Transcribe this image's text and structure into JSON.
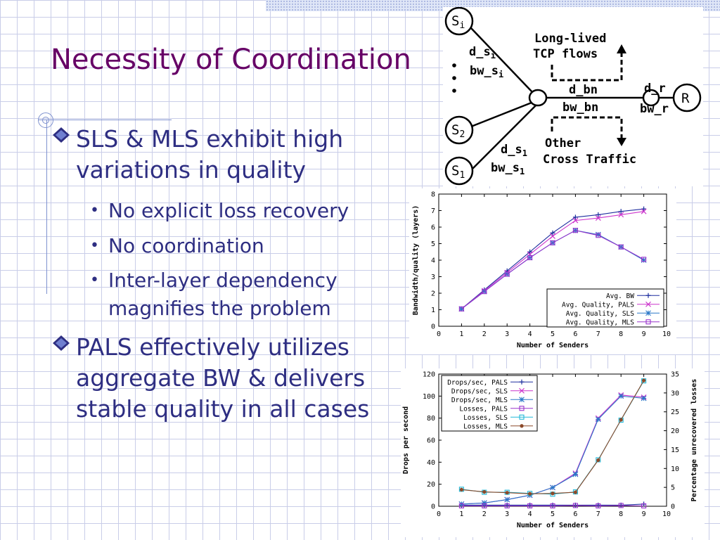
{
  "slide": {
    "title": "Necessity of Coordination",
    "bullets": [
      {
        "text": "SLS & MLS exhibit high variations in quality",
        "sub": [
          "No explicit loss recovery",
          "No coordination",
          "Inter-layer dependency magnifies the problem"
        ]
      },
      {
        "text": "PALS effectively utilizes aggregate BW & delivers stable quality in all cases",
        "sub": []
      }
    ]
  },
  "diagram": {
    "nodes": {
      "si": "S",
      "si_sub": "i",
      "s2": "S",
      "s2_sub": "2",
      "s1": "S",
      "s1_sub": "1",
      "r": "R"
    },
    "labels": {
      "dsi": "d_s",
      "dsi_sub": "i",
      "bwsi": "bw_s",
      "bwsi_sub": "i",
      "ds1": "d_s",
      "ds1_sub": "1",
      "bws1": "bw_s",
      "bws1_sub": "1",
      "dbn": "d_bn",
      "bwbn": "bw_bn",
      "dr": "d_r",
      "bwr": "bw_r",
      "tcp1": "Long-lived",
      "tcp2": "TCP flows",
      "cross1": "Other",
      "cross2": "Cross Traffic"
    }
  },
  "chart_data": [
    {
      "type": "line",
      "xlabel": "Number of Senders",
      "ylabel": "Bandwidth/quality (layers)",
      "xlim": [
        0,
        10
      ],
      "ylim": [
        0,
        8
      ],
      "xticks": [
        "0",
        "1",
        "2",
        "3",
        "4",
        "5",
        "6",
        "7",
        "8",
        "9",
        "10"
      ],
      "yticks": [
        "0",
        "1",
        "2",
        "3",
        "4",
        "5",
        "6",
        "7",
        "8"
      ],
      "legend_position": "bottom-right",
      "series": [
        {
          "name": "Avg. BW",
          "color": "#1f2f9f",
          "marker": "plus",
          "x": [
            1,
            2,
            3,
            4,
            5,
            6,
            7,
            8,
            9
          ],
          "y": [
            1.05,
            2.2,
            3.35,
            4.5,
            5.65,
            6.6,
            6.75,
            6.95,
            7.1
          ]
        },
        {
          "name": "Avg. Quality, PALS",
          "color": "#cc33cc",
          "marker": "x",
          "x": [
            1,
            2,
            3,
            4,
            5,
            6,
            7,
            8,
            9
          ],
          "y": [
            1.05,
            2.15,
            3.25,
            4.35,
            5.45,
            6.4,
            6.55,
            6.75,
            6.95
          ]
        },
        {
          "name": "Avg. Quality, SLS",
          "color": "#2a78c8",
          "marker": "star",
          "x": [
            1,
            2,
            3,
            4,
            5,
            6,
            7,
            8,
            9
          ],
          "y": [
            1.05,
            2.1,
            3.15,
            4.15,
            5.05,
            5.8,
            5.55,
            4.8,
            4.0
          ]
        },
        {
          "name": "Avg. Quality, MLS",
          "color": "#9933cc",
          "marker": "square",
          "x": [
            1,
            2,
            3,
            4,
            5,
            6,
            7,
            8,
            9
          ],
          "y": [
            1.05,
            2.1,
            3.15,
            4.15,
            5.05,
            5.8,
            5.5,
            4.8,
            4.05
          ]
        }
      ]
    },
    {
      "type": "line",
      "xlabel": "Number of Senders",
      "ylabel": "Drops per second",
      "y2label": "Percentage unrecovered losses",
      "xlim": [
        0,
        10
      ],
      "ylim": [
        0,
        120
      ],
      "y2lim": [
        0,
        35
      ],
      "xticks": [
        "0",
        "1",
        "2",
        "3",
        "4",
        "5",
        "6",
        "7",
        "8",
        "9",
        "10"
      ],
      "yticks": [
        "0",
        "20",
        "40",
        "60",
        "80",
        "100",
        "120"
      ],
      "y2ticks": [
        "0",
        "5",
        "10",
        "15",
        "20",
        "25",
        "30",
        "35"
      ],
      "legend_position": "top-left",
      "series": [
        {
          "name": "Drops/sec, PALS",
          "axis": "left",
          "color": "#1f2f9f",
          "marker": "plus",
          "x": [
            1,
            2,
            3,
            4,
            5,
            6,
            7,
            8,
            9
          ],
          "y": [
            1,
            1,
            1,
            1,
            1,
            1,
            1,
            1,
            2
          ]
        },
        {
          "name": "Drops/sec, SLS",
          "axis": "left",
          "color": "#cc33cc",
          "marker": "x",
          "x": [
            1,
            2,
            3,
            4,
            5,
            6,
            7,
            8,
            9
          ],
          "y": [
            2,
            3,
            6,
            10,
            17,
            30,
            80,
            101,
            99
          ]
        },
        {
          "name": "Drops/sec, MLS",
          "axis": "left",
          "color": "#2a78c8",
          "marker": "star",
          "x": [
            1,
            2,
            3,
            4,
            5,
            6,
            7,
            8,
            9
          ],
          "y": [
            2,
            3,
            6,
            10,
            17,
            29,
            79,
            100,
            98
          ]
        },
        {
          "name": "Losses, PALS",
          "axis": "right",
          "color": "#9933cc",
          "marker": "square",
          "x": [
            1,
            2,
            3,
            4,
            5,
            6,
            7,
            8,
            9
          ],
          "y": [
            0.1,
            0.1,
            0.1,
            0.1,
            0.1,
            0.2,
            0.1,
            0.2,
            0.1
          ]
        },
        {
          "name": "Losses, SLS",
          "axis": "right",
          "color": "#22b8d8",
          "marker": "square",
          "x": [
            1,
            2,
            3,
            4,
            5,
            6,
            7,
            8,
            9
          ],
          "y": [
            4.5,
            3.7,
            3.7,
            3.4,
            3.2,
            3.8,
            12.3,
            22.8,
            33.2
          ]
        },
        {
          "name": "Losses, MLS",
          "axis": "right",
          "color": "#8b4a2a",
          "marker": "dot",
          "x": [
            1,
            2,
            3,
            4,
            5,
            6,
            7,
            8,
            9
          ],
          "y": [
            4.4,
            3.8,
            3.6,
            3.3,
            3.4,
            3.7,
            12.2,
            22.9,
            33.3
          ]
        }
      ]
    }
  ]
}
